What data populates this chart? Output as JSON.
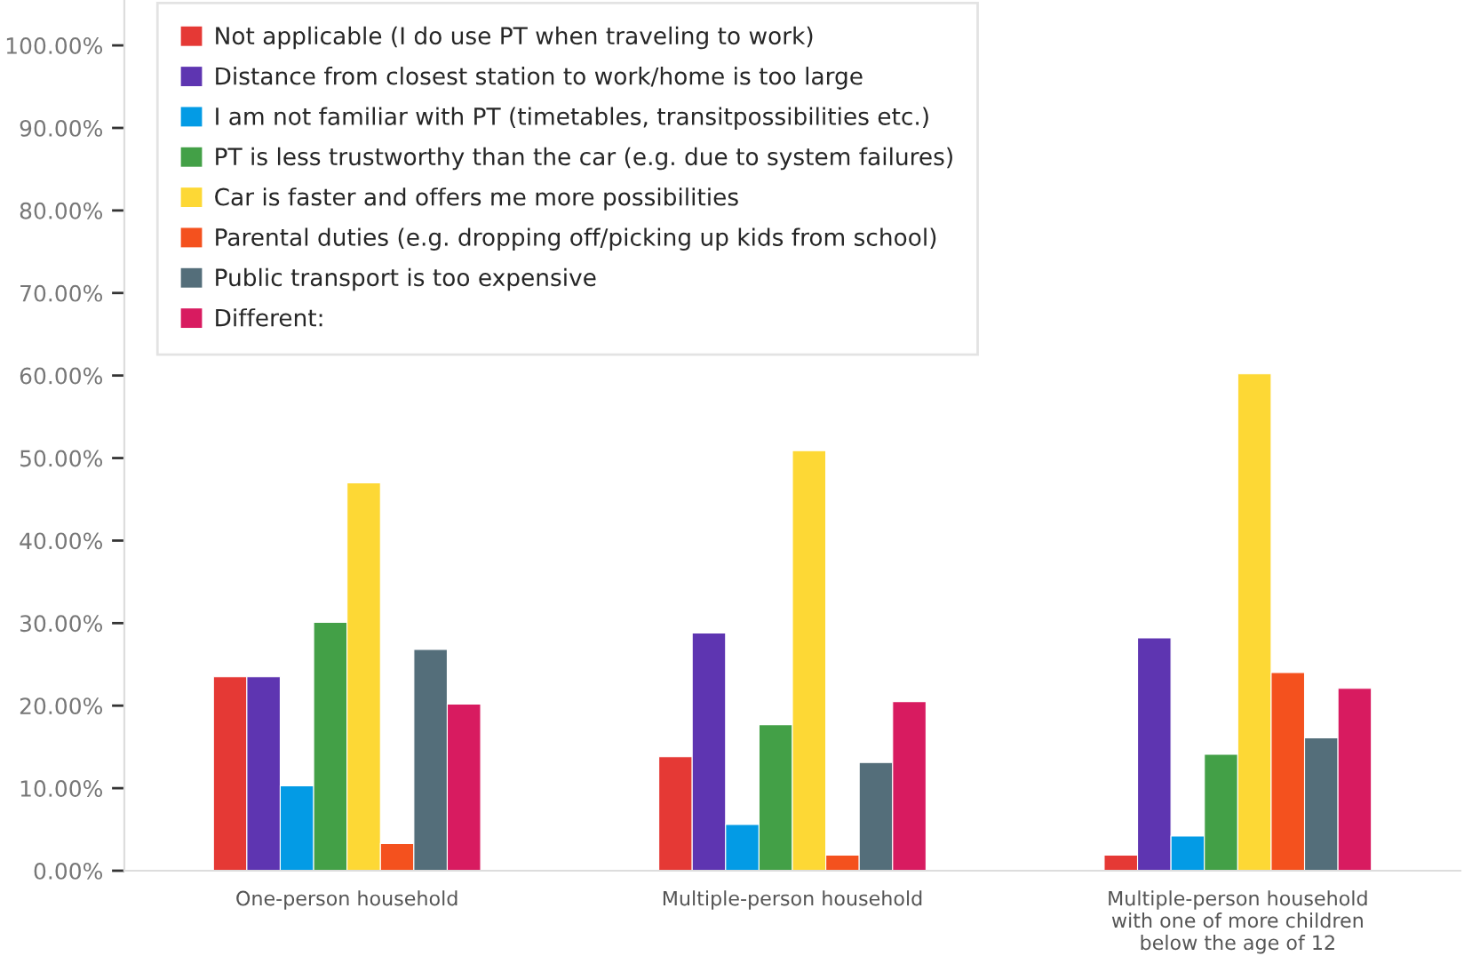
{
  "chart_data": {
    "type": "bar",
    "categories": [
      "One-person household",
      "Multiple-person household",
      "Multiple-person household\nwith one of more children\nbelow the age of 12"
    ],
    "series": [
      {
        "name": "Not applicable (I do use PT when traveling to work)",
        "color": "#e53935",
        "values": [
          23.5,
          13.8,
          1.9
        ]
      },
      {
        "name": "Distance from closest station to work/home is too large",
        "color": "#5e35b1",
        "values": [
          23.5,
          28.8,
          28.2
        ]
      },
      {
        "name": "I am not familiar with PT (timetables, transitpossibilities etc.)",
        "color": "#039be5",
        "values": [
          10.3,
          5.6,
          4.2
        ]
      },
      {
        "name": "PT is less trustworthy than the car (e.g. due to system failures)",
        "color": "#43a047",
        "values": [
          30.1,
          17.7,
          14.1
        ]
      },
      {
        "name": "Car is faster and offers me more possibilities",
        "color": "#fdd835",
        "values": [
          47.0,
          50.9,
          60.2
        ]
      },
      {
        "name": "Parental duties (e.g. dropping off/picking up kids from school)",
        "color": "#f4511e",
        "values": [
          3.3,
          1.9,
          24.0
        ]
      },
      {
        "name": "Public transport is too expensive",
        "color": "#546e7a",
        "values": [
          26.8,
          13.1,
          16.1
        ]
      },
      {
        "name": "Different:",
        "color": "#d81b60",
        "values": [
          20.2,
          20.5,
          22.1
        ]
      }
    ],
    "ylim": [
      0,
      105.5
    ],
    "yticks": [
      {
        "value": 0,
        "label": "0.00%"
      },
      {
        "value": 10,
        "label": "10.00%"
      },
      {
        "value": 20,
        "label": "20.00%"
      },
      {
        "value": 30,
        "label": "30.00%"
      },
      {
        "value": 40,
        "label": "40.00%"
      },
      {
        "value": 50,
        "label": "50.00%"
      },
      {
        "value": 60,
        "label": "60.00%"
      },
      {
        "value": 70,
        "label": "70.00%"
      },
      {
        "value": 80,
        "label": "80.00%"
      },
      {
        "value": 90,
        "label": "90.00%"
      },
      {
        "value": 100,
        "label": "100.00%"
      }
    ],
    "grid": false,
    "legend": "top left"
  }
}
